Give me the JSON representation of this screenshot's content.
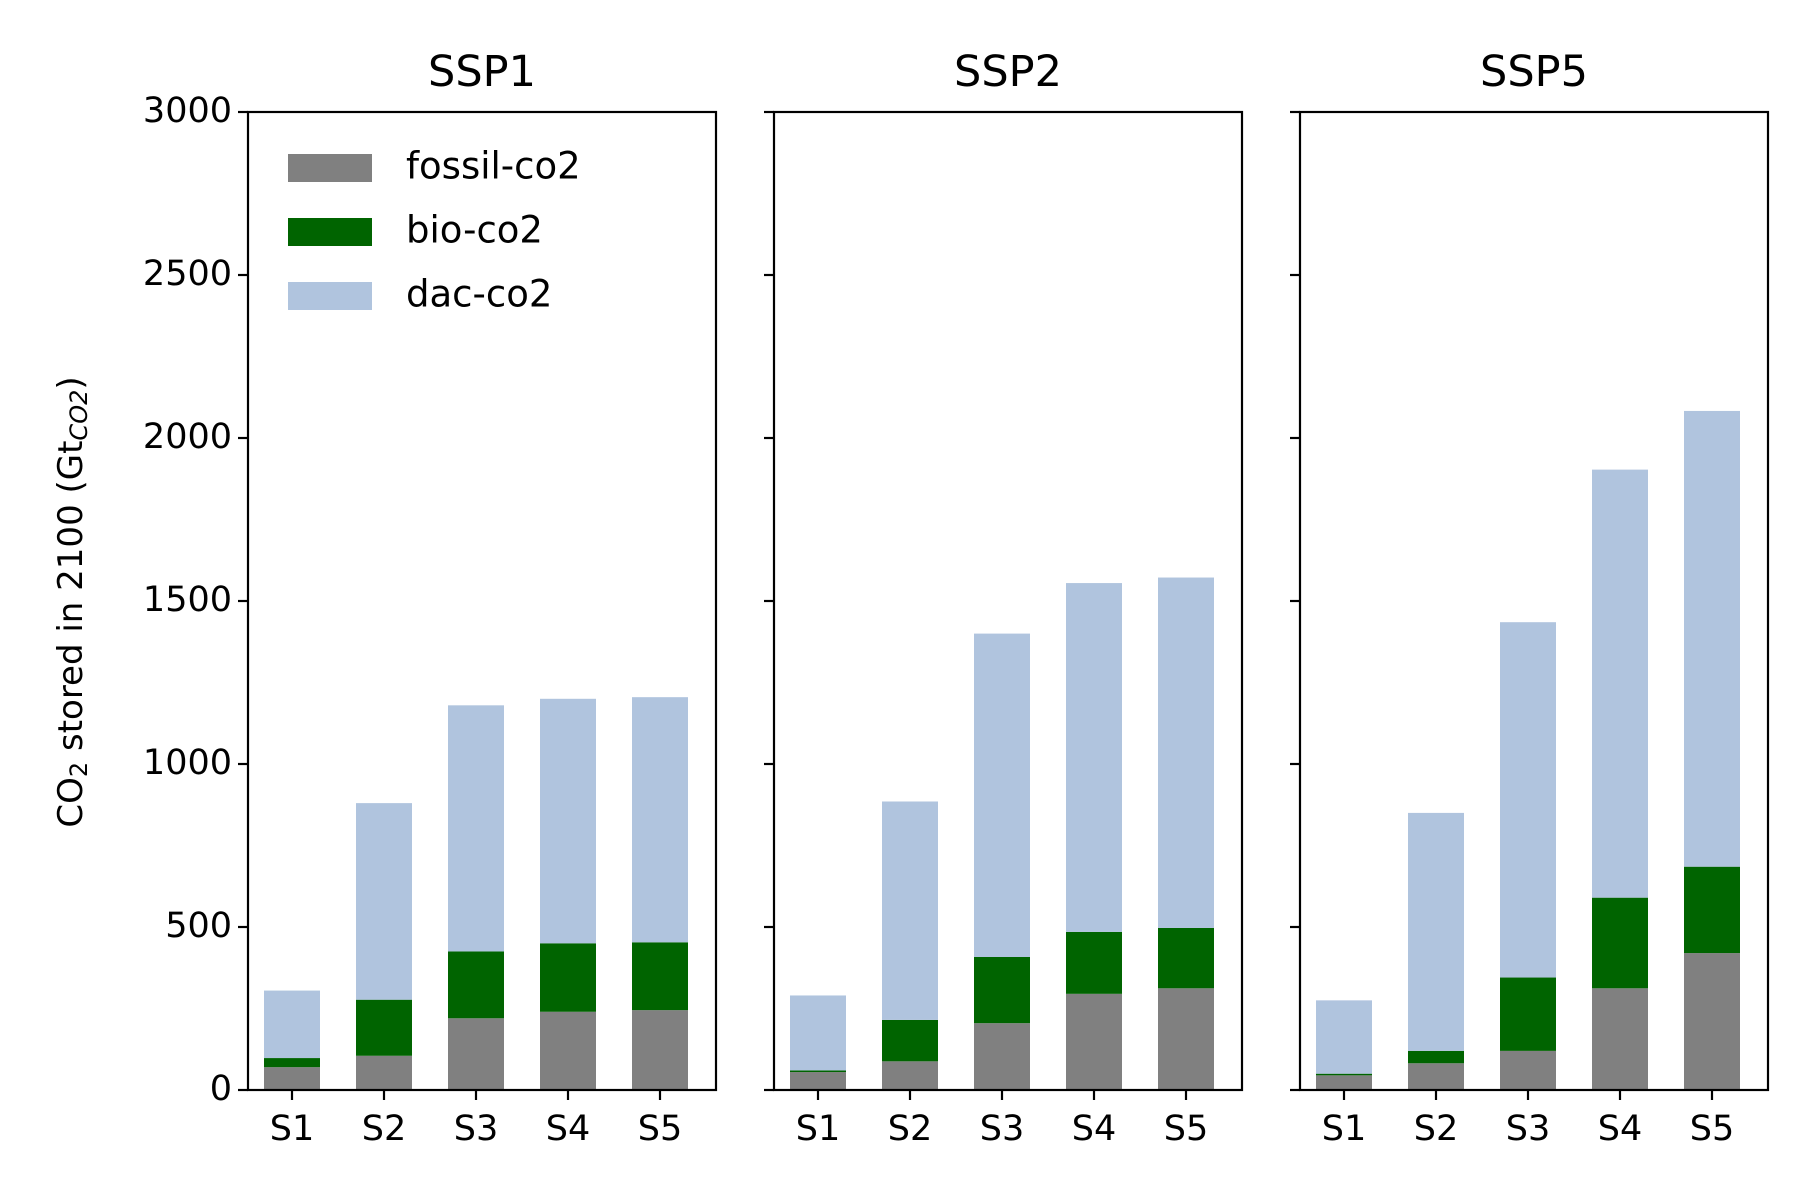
{
  "chart_data": {
    "type": "bar",
    "stacked": true,
    "ylabel": {
      "main": "CO",
      "sub": "2",
      "middle": " stored in 2100 (Gt",
      "unit_sub": "CO2",
      "close": ")"
    },
    "ylim": [
      0,
      3000
    ],
    "yticks": [
      0,
      500,
      1000,
      1500,
      2000,
      2500,
      3000
    ],
    "categories": [
      "S1",
      "S2",
      "S3",
      "S4",
      "S5"
    ],
    "legend": {
      "placement": "top-left of first panel",
      "entries": [
        {
          "name": "fossil-co2",
          "color": "#808080"
        },
        {
          "name": "bio-co2",
          "color": "#006400"
        },
        {
          "name": "dac-co2",
          "color": "#b0c4de"
        }
      ]
    },
    "panels": [
      {
        "title": "SSP1",
        "series": [
          {
            "name": "fossil-co2",
            "values": [
              70,
              105,
              220,
              240,
              245
            ]
          },
          {
            "name": "bio-co2",
            "values": [
              28,
              172,
              205,
              210,
              208
            ]
          },
          {
            "name": "dac-co2",
            "values": [
              207,
              603,
              755,
              750,
              752
            ]
          }
        ]
      },
      {
        "title": "SSP2",
        "series": [
          {
            "name": "fossil-co2",
            "values": [
              55,
              88,
              205,
              295,
              312
            ]
          },
          {
            "name": "bio-co2",
            "values": [
              5,
              127,
              203,
              190,
              185
            ]
          },
          {
            "name": "dac-co2",
            "values": [
              230,
              670,
              992,
              1070,
              1075
            ]
          }
        ]
      },
      {
        "title": "SSP5",
        "series": [
          {
            "name": "fossil-co2",
            "values": [
              45,
              82,
              120,
              312,
              420
            ]
          },
          {
            "name": "bio-co2",
            "values": [
              5,
              38,
              225,
              278,
              265
            ]
          },
          {
            "name": "dac-co2",
            "values": [
              225,
              730,
              1090,
              1313,
              1398
            ]
          }
        ]
      }
    ]
  }
}
